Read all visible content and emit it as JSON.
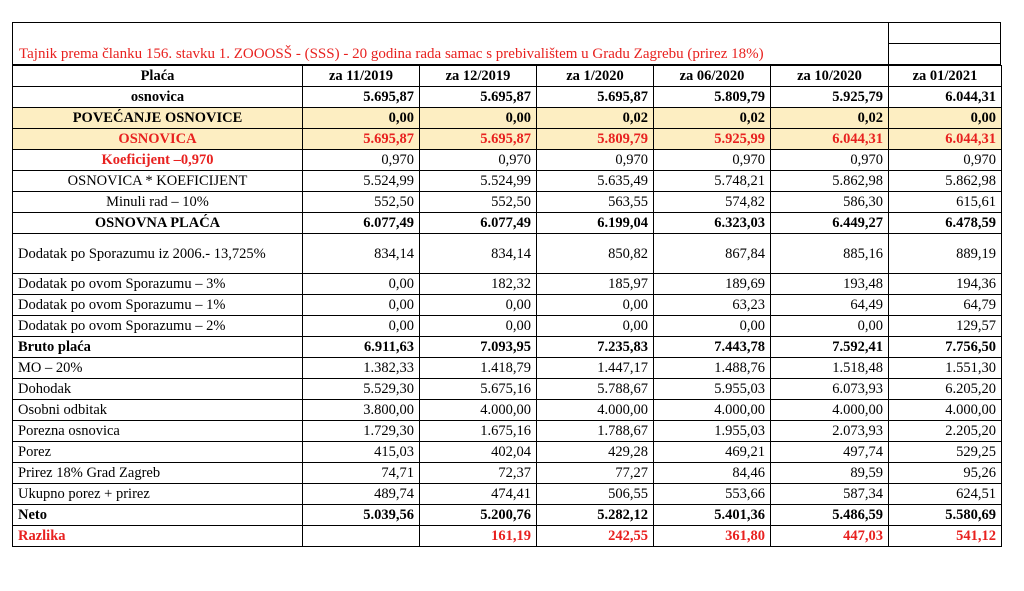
{
  "caption": "Tajnik prema članku 156. stavku 1. ZOOOSŠ - (SSS) -  20 godina rada samac s prebivalištem u Gradu Zagrebu (prirez 18%)",
  "header": {
    "label": "Plaća",
    "columns": [
      "za 11/2019",
      "za 12/2019",
      "za 1/2020",
      "za 06/2020",
      "za 10/2020",
      "za 01/2021"
    ]
  },
  "rows": [
    {
      "label": "osnovica",
      "values": [
        "5.695,87",
        "5.695,87",
        "5.695,87",
        "5.809,79",
        "5.925,79",
        "6.044,31"
      ]
    },
    {
      "label": "POVEĆANJE OSNOVICE",
      "values": [
        "0,00",
        "0,00",
        "0,02",
        "0,02",
        "0,02",
        "0,00"
      ]
    },
    {
      "label": "OSNOVICA",
      "values": [
        "5.695,87",
        "5.695,87",
        "5.809,79",
        "5.925,99",
        "6.044,31",
        "6.044,31"
      ]
    },
    {
      "label": "Koeficijent –0,970",
      "values": [
        "0,970",
        "0,970",
        "0,970",
        "0,970",
        "0,970",
        "0,970"
      ]
    },
    {
      "label": "OSNOVICA * KOEFICIJENT",
      "values": [
        "5.524,99",
        "5.524,99",
        "5.635,49",
        "5.748,21",
        "5.862,98",
        "5.862,98"
      ]
    },
    {
      "label": "Minuli rad – 10%",
      "values": [
        "552,50",
        "552,50",
        "563,55",
        "574,82",
        "586,30",
        "615,61"
      ]
    },
    {
      "label": "OSNOVNA PLAĆA",
      "values": [
        "6.077,49",
        "6.077,49",
        "6.199,04",
        "6.323,03",
        "6.449,27",
        "6.478,59"
      ]
    },
    {
      "label": "Dodatak po Sporazumu iz 2006.- 13,725%",
      "values": [
        "834,14",
        "834,14",
        "850,82",
        "867,84",
        "885,16",
        "889,19"
      ]
    },
    {
      "label": "Dodatak po ovom Sporazumu – 3%",
      "values": [
        "0,00",
        "182,32",
        "185,97",
        "189,69",
        "193,48",
        "194,36"
      ]
    },
    {
      "label": "Dodatak po ovom Sporazumu – 1%",
      "values": [
        "0,00",
        "0,00",
        "0,00",
        "63,23",
        "64,49",
        "64,79"
      ]
    },
    {
      "label": "Dodatak po ovom Sporazumu – 2%",
      "values": [
        "0,00",
        "0,00",
        "0,00",
        "0,00",
        "0,00",
        "129,57"
      ]
    },
    {
      "label": "Bruto plaća",
      "values": [
        "6.911,63",
        "7.093,95",
        "7.235,83",
        "7.443,78",
        "7.592,41",
        "7.756,50"
      ]
    },
    {
      "label": "MO – 20%",
      "values": [
        "1.382,33",
        "1.418,79",
        "1.447,17",
        "1.488,76",
        "1.518,48",
        "1.551,30"
      ]
    },
    {
      "label": "Dohodak",
      "values": [
        "5.529,30",
        "5.675,16",
        "5.788,67",
        "5.955,03",
        "6.073,93",
        "6.205,20"
      ]
    },
    {
      "label": "Osobni odbitak",
      "values": [
        "3.800,00",
        "4.000,00",
        "4.000,00",
        "4.000,00",
        "4.000,00",
        "4.000,00"
      ]
    },
    {
      "label": "Porezna osnovica",
      "values": [
        "1.729,30",
        "1.675,16",
        "1.788,67",
        "1.955,03",
        "2.073,93",
        "2.205,20"
      ]
    },
    {
      "label": "Porez",
      "values": [
        "415,03",
        "402,04",
        "429,28",
        "469,21",
        "497,74",
        "529,25"
      ]
    },
    {
      "label": "Prirez 18% Grad Zagreb",
      "values": [
        "74,71",
        "72,37",
        "77,27",
        "84,46",
        "89,59",
        "95,26"
      ]
    },
    {
      "label": "Ukupno porez + prirez",
      "values": [
        "489,74",
        "474,41",
        "506,55",
        "553,66",
        "587,34",
        "624,51"
      ]
    },
    {
      "label": "Neto",
      "values": [
        "5.039,56",
        "5.200,76",
        "5.282,12",
        "5.401,36",
        "5.486,59",
        "5.580,69"
      ]
    },
    {
      "label": "Razlika",
      "values": [
        "",
        "161,19",
        "242,55",
        "361,80",
        "447,03",
        "541,12"
      ]
    }
  ],
  "colors": {
    "accent_red": "#e8211f",
    "highlight": "#fdeec2"
  }
}
